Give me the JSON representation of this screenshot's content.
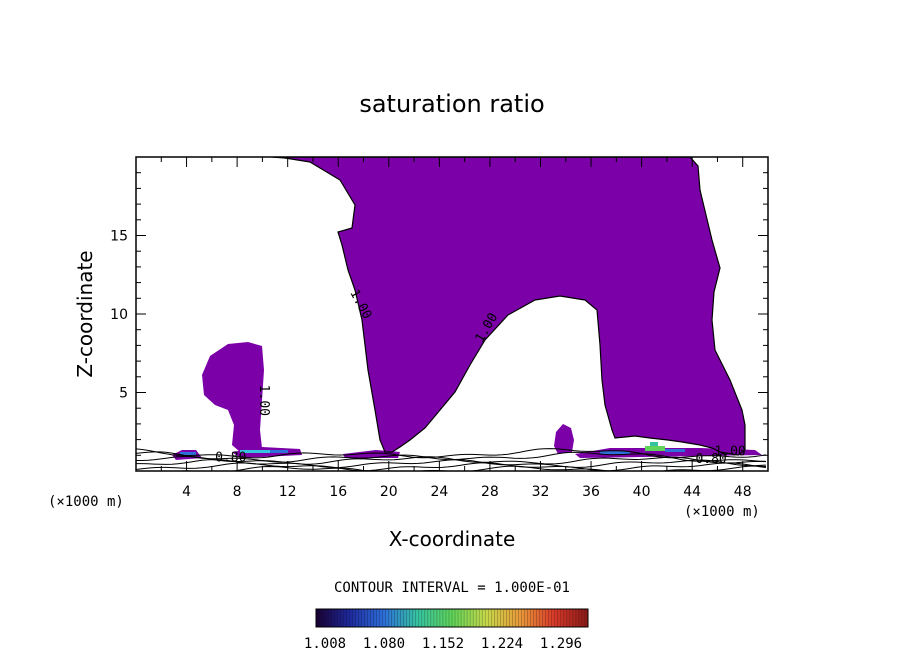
{
  "chart_data": {
    "type": "contour",
    "title": "saturation ratio",
    "xlabel": "X-coordinate",
    "ylabel": "Z-coordinate",
    "x_unit": "(×1000 m)",
    "x_unit_right": "(×1000 m)",
    "xlim": [
      0,
      50
    ],
    "ylim": [
      0,
      20
    ],
    "x_ticks": [
      4,
      8,
      12,
      16,
      20,
      24,
      28,
      32,
      36,
      40,
      44,
      48
    ],
    "y_ticks": [
      5,
      10,
      15
    ],
    "contour_labels": [
      {
        "text": "1.00",
        "x": 17.5,
        "z": 10.5,
        "rotate": 62
      },
      {
        "text": "1.00",
        "x": 28.0,
        "z": 9.0,
        "rotate": -60
      },
      {
        "text": "1.00",
        "x": 9.8,
        "z": 4.5,
        "rotate": 90
      },
      {
        "text": "0.80",
        "x": 7.5,
        "z": 0.6,
        "rotate": 0
      },
      {
        "text": "0.80",
        "x": 45.5,
        "z": 0.5,
        "rotate": 0
      },
      {
        "text": "1.00",
        "x": 47.0,
        "z": 1.0,
        "rotate": 0
      }
    ],
    "contour_interval_text": "CONTOUR INTERVAL = 1.000E-01",
    "colorbar": {
      "ticks": [
        "1.008",
        "1.080",
        "1.152",
        "1.224",
        "1.296"
      ],
      "colors": [
        "#1a0033",
        "#1e2a9e",
        "#2e6fd9",
        "#36c4a0",
        "#5fd35a",
        "#c6d94a",
        "#e89a3a",
        "#d83a2a",
        "#8a1a18"
      ]
    },
    "fill_color": "#7b00a8"
  }
}
